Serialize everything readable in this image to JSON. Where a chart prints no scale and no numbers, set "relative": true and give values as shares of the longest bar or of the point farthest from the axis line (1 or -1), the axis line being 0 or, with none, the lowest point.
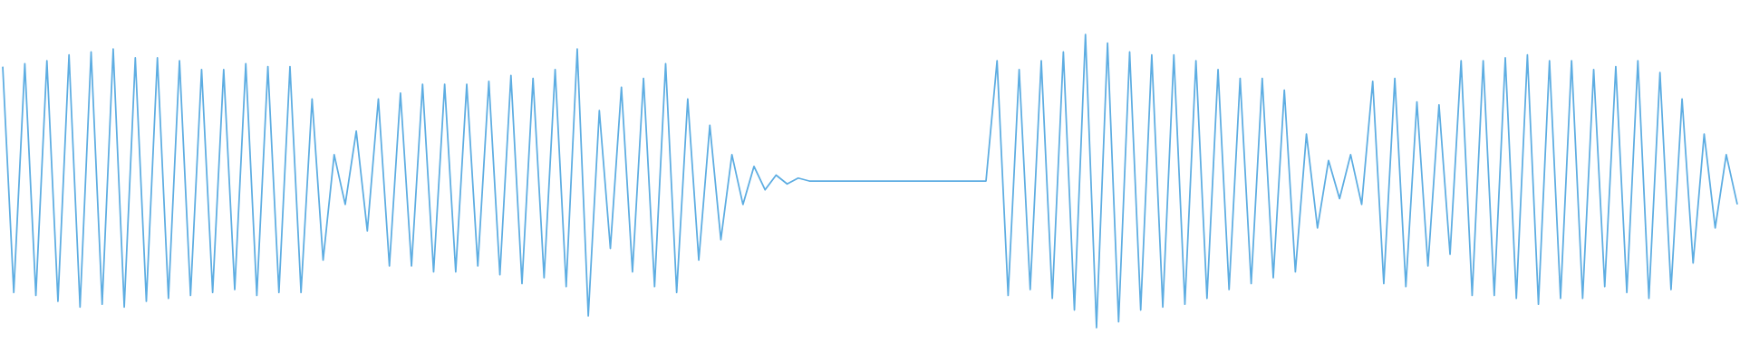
{
  "chart_data": {
    "type": "line",
    "relative": true,
    "color": "#5dade2",
    "marker": "none",
    "categories": [
      null,
      null,
      null,
      null,
      null,
      null,
      null,
      null,
      null,
      null,
      null,
      null,
      null,
      null,
      null,
      null,
      null,
      null,
      null,
      null,
      null,
      null,
      null,
      null,
      null,
      null,
      null,
      null,
      null,
      null,
      null,
      null,
      null,
      null,
      null,
      null,
      null,
      null,
      null,
      null,
      null,
      null,
      null,
      null,
      null,
      null,
      null,
      null,
      null,
      null,
      null,
      null,
      null,
      null,
      null,
      null,
      null,
      null,
      null,
      null,
      null,
      null,
      null,
      null,
      null,
      null,
      null,
      null,
      null,
      null,
      null,
      null,
      null,
      null,
      null,
      null,
      null,
      null,
      null,
      null,
      null,
      null,
      null,
      null,
      null,
      null,
      null,
      null,
      null,
      null,
      null,
      null,
      null,
      null,
      null,
      null,
      null,
      null,
      null,
      null,
      null,
      null,
      null,
      null,
      null,
      null,
      null,
      null,
      null,
      null,
      null,
      null,
      null,
      null,
      null,
      null,
      null,
      null,
      null,
      null,
      null,
      null,
      null,
      null,
      null,
      null,
      null,
      null,
      null,
      null,
      null,
      null,
      null,
      null,
      null,
      null,
      null,
      null,
      null,
      null,
      null,
      null,
      null,
      null,
      null,
      null,
      null,
      null,
      null,
      null,
      null,
      null,
      null,
      null,
      null,
      null,
      null,
      null
    ],
    "values": [
      0.89,
      0.12,
      0.9,
      0.11,
      0.91,
      0.09,
      0.93,
      0.07,
      0.94,
      0.08,
      0.95,
      0.07,
      0.92,
      0.09,
      0.92,
      0.1,
      0.91,
      0.11,
      0.88,
      0.12,
      0.88,
      0.13,
      0.9,
      0.11,
      0.89,
      0.12,
      0.89,
      0.12,
      0.78,
      0.23,
      0.59,
      0.42,
      0.67,
      0.33,
      0.78,
      0.21,
      0.8,
      0.21,
      0.83,
      0.19,
      0.83,
      0.19,
      0.83,
      0.21,
      0.84,
      0.18,
      0.86,
      0.15,
      0.85,
      0.17,
      0.88,
      0.14,
      0.95,
      0.04,
      0.74,
      0.27,
      0.82,
      0.19,
      0.85,
      0.14,
      0.9,
      0.12,
      0.78,
      0.23,
      0.69,
      0.3,
      0.59,
      0.42,
      0.55,
      0.47,
      0.52,
      0.49,
      0.51,
      0.5,
      0.5,
      0.5,
      0.5,
      0.5,
      0.5,
      0.5,
      0.5,
      0.5,
      0.5,
      0.5,
      0.5,
      0.5,
      0.5,
      0.5,
      0.5,
      0.5,
      0.91,
      0.11,
      0.88,
      0.13,
      0.91,
      0.1,
      0.94,
      0.06,
      1.0,
      0.0,
      0.97,
      0.02,
      0.94,
      0.06,
      0.93,
      0.07,
      0.93,
      0.08,
      0.91,
      0.1,
      0.88,
      0.13,
      0.85,
      0.15,
      0.85,
      0.17,
      0.81,
      0.19,
      0.66,
      0.34,
      0.57,
      0.44,
      0.59,
      0.42,
      0.84,
      0.15,
      0.85,
      0.14,
      0.77,
      0.21,
      0.76,
      0.25,
      0.91,
      0.11,
      0.91,
      0.11,
      0.92,
      0.1,
      0.93,
      0.08,
      0.91,
      0.1,
      0.91,
      0.1,
      0.88,
      0.14,
      0.89,
      0.12,
      0.91,
      0.1,
      0.87,
      0.13,
      0.78,
      0.22,
      0.66,
      0.34,
      0.59,
      0.42
    ]
  }
}
